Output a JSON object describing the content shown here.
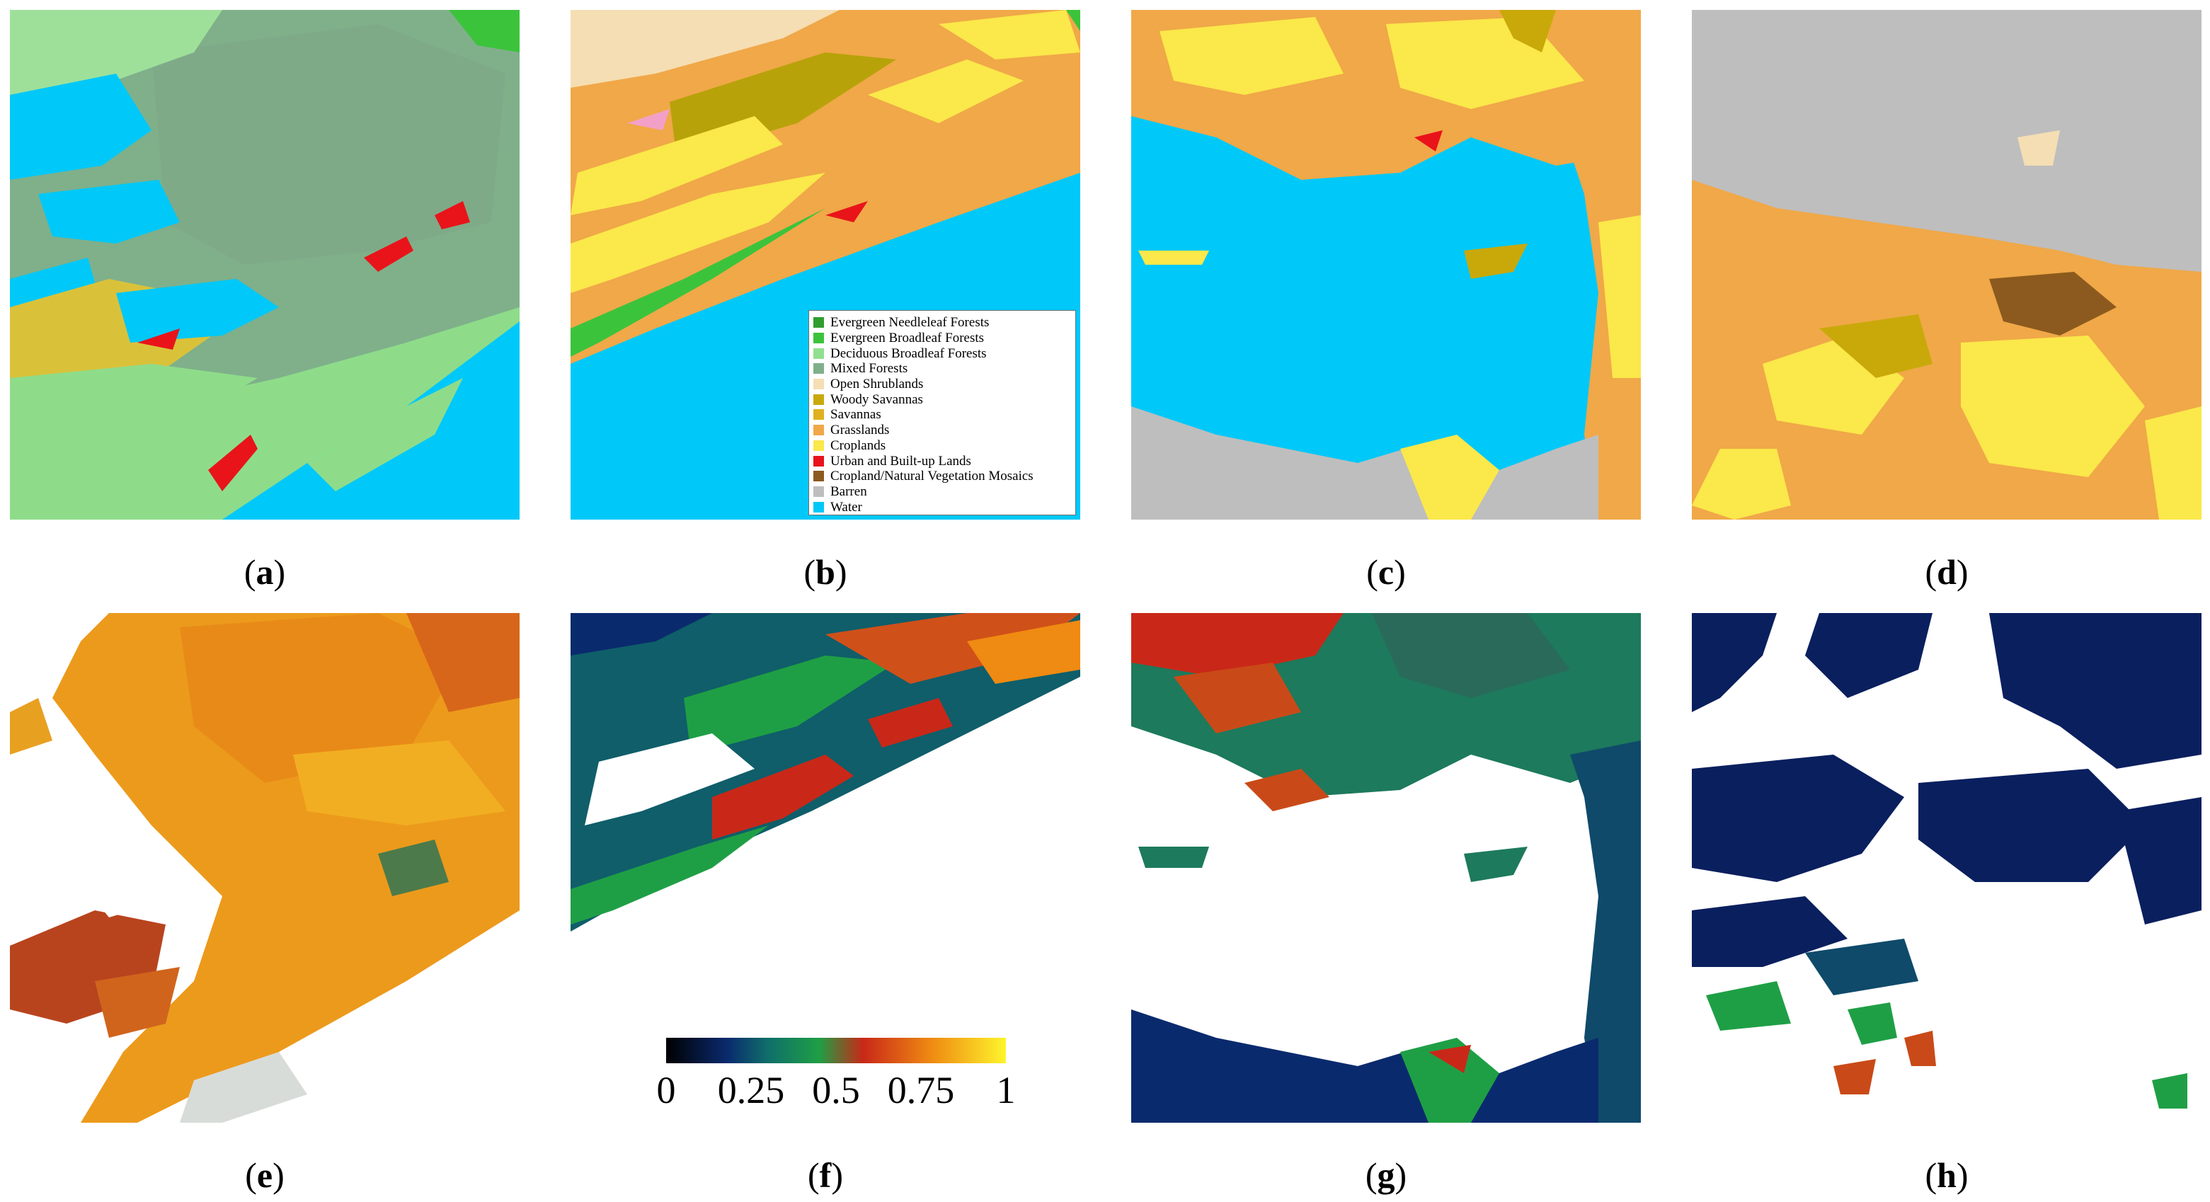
{
  "legend": {
    "entries": [
      {
        "label": "Evergreen Needleleaf Forests",
        "color": "#2f9e2f"
      },
      {
        "label": "Evergreen Broadleaf Forests",
        "color": "#3cc33c"
      },
      {
        "label": "Deciduous Broadleaf Forests",
        "color": "#90e090"
      },
      {
        "label": "Mixed Forests",
        "color": "#7fb08a"
      },
      {
        "label": "Open Shrublands",
        "color": "#f5deb3"
      },
      {
        "label": "Woody Savannas",
        "color": "#c9a90a"
      },
      {
        "label": "Savannas",
        "color": "#e0b020"
      },
      {
        "label": "Grasslands",
        "color": "#f0a848"
      },
      {
        "label": "Croplands",
        "color": "#fbe84a"
      },
      {
        "label": "Urban and Built-up Lands",
        "color": "#e8141a"
      },
      {
        "label": "Cropland/Natural Vegetation Mosaics",
        "color": "#8c5a1e"
      },
      {
        "label": "Barren",
        "color": "#bebebe"
      },
      {
        "label": "Water",
        "color": "#00c8f8"
      }
    ]
  },
  "colorbar": {
    "ticks": [
      {
        "value": 0,
        "label": "0"
      },
      {
        "value": 0.25,
        "label": "0.25"
      },
      {
        "value": 0.5,
        "label": "0.5"
      },
      {
        "value": 0.75,
        "label": "0.75"
      },
      {
        "value": 1,
        "label": "1"
      }
    ],
    "min": 0,
    "max": 1
  },
  "captions": {
    "a": "a",
    "b": "b",
    "c": "c",
    "d": "d",
    "e": "e",
    "f": "f",
    "g": "g",
    "h": "h"
  }
}
